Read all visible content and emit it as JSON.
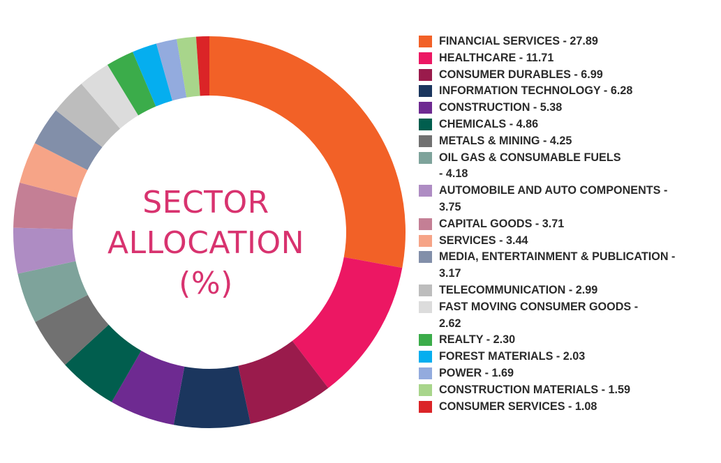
{
  "chart_data": {
    "type": "pie",
    "title": "SECTOR ALLOCATION (%)",
    "title_lines": [
      "SECTOR",
      "ALLOCATION",
      "(%)"
    ],
    "legend_position": "right",
    "slices": [
      {
        "label": "FINANCIAL SERVICES",
        "value": 27.89,
        "value_text": "27.89",
        "color": "#f26127"
      },
      {
        "label": "HEALTHCARE",
        "value": 11.71,
        "value_text": "11.71",
        "color": "#ec1763"
      },
      {
        "label": "CONSUMER DURABLES",
        "value": 6.99,
        "value_text": "6.99",
        "color": "#9a1b4c"
      },
      {
        "label": "INFORMATION TECHNOLOGY",
        "value": 6.28,
        "value_text": "6.28",
        "color": "#1b365e"
      },
      {
        "label": "CONSTRUCTION",
        "value": 5.38,
        "value_text": "5.38",
        "color": "#6e2a91"
      },
      {
        "label": "CHEMICALS",
        "value": 4.86,
        "value_text": "4.86",
        "color": "#015e4e"
      },
      {
        "label": "METALS & MINING",
        "value": 4.25,
        "value_text": "4.25",
        "color": "#717171"
      },
      {
        "label": "OIL GAS & CONSUMABLE FUELS",
        "value": 4.18,
        "value_text": "4.18",
        "color": "#7ea39b",
        "wrap": "break"
      },
      {
        "label": "AUTOMOBILE AND AUTO COMPONENTS",
        "value": 3.75,
        "value_text": "3.75",
        "color": "#ae8cc3",
        "wrap": "dash"
      },
      {
        "label": "CAPITAL GOODS",
        "value": 3.71,
        "value_text": "3.71",
        "color": "#c47f95",
        "wrap": "none"
      },
      {
        "label": "SERVICES",
        "value": 3.44,
        "value_text": "3.44",
        "color": "#f6a487",
        "wrap": "none"
      },
      {
        "label": "MEDIA, ENTERTAINMENT & PUBLICATION",
        "value": 3.17,
        "value_text": "3.17",
        "color": "#828fa9",
        "wrap": "dash"
      },
      {
        "label": "TELECOMMUNICATION",
        "value": 2.99,
        "value_text": "2.99",
        "color": "#bdbdbd",
        "wrap": "none"
      },
      {
        "label": "FAST MOVING CONSUMER GOODS",
        "value": 2.62,
        "value_text": "2.62",
        "color": "#dcdcdc",
        "wrap": "dash"
      },
      {
        "label": "REALTY",
        "value": 2.3,
        "value_text": "2.30",
        "color": "#3bac4a",
        "wrap": "none"
      },
      {
        "label": "FOREST MATERIALS",
        "value": 2.03,
        "value_text": "2.03",
        "color": "#05aeef",
        "wrap": "none"
      },
      {
        "label": "POWER",
        "value": 1.69,
        "value_text": "1.69",
        "color": "#93abde",
        "wrap": "none"
      },
      {
        "label": "CONSTRUCTION MATERIALS",
        "value": 1.59,
        "value_text": "1.59",
        "color": "#a8d58b",
        "wrap": "none"
      },
      {
        "label": "CONSUMER SERVICES",
        "value": 1.08,
        "value_text": "1.08",
        "color": "#db2427",
        "wrap": "none"
      }
    ]
  }
}
